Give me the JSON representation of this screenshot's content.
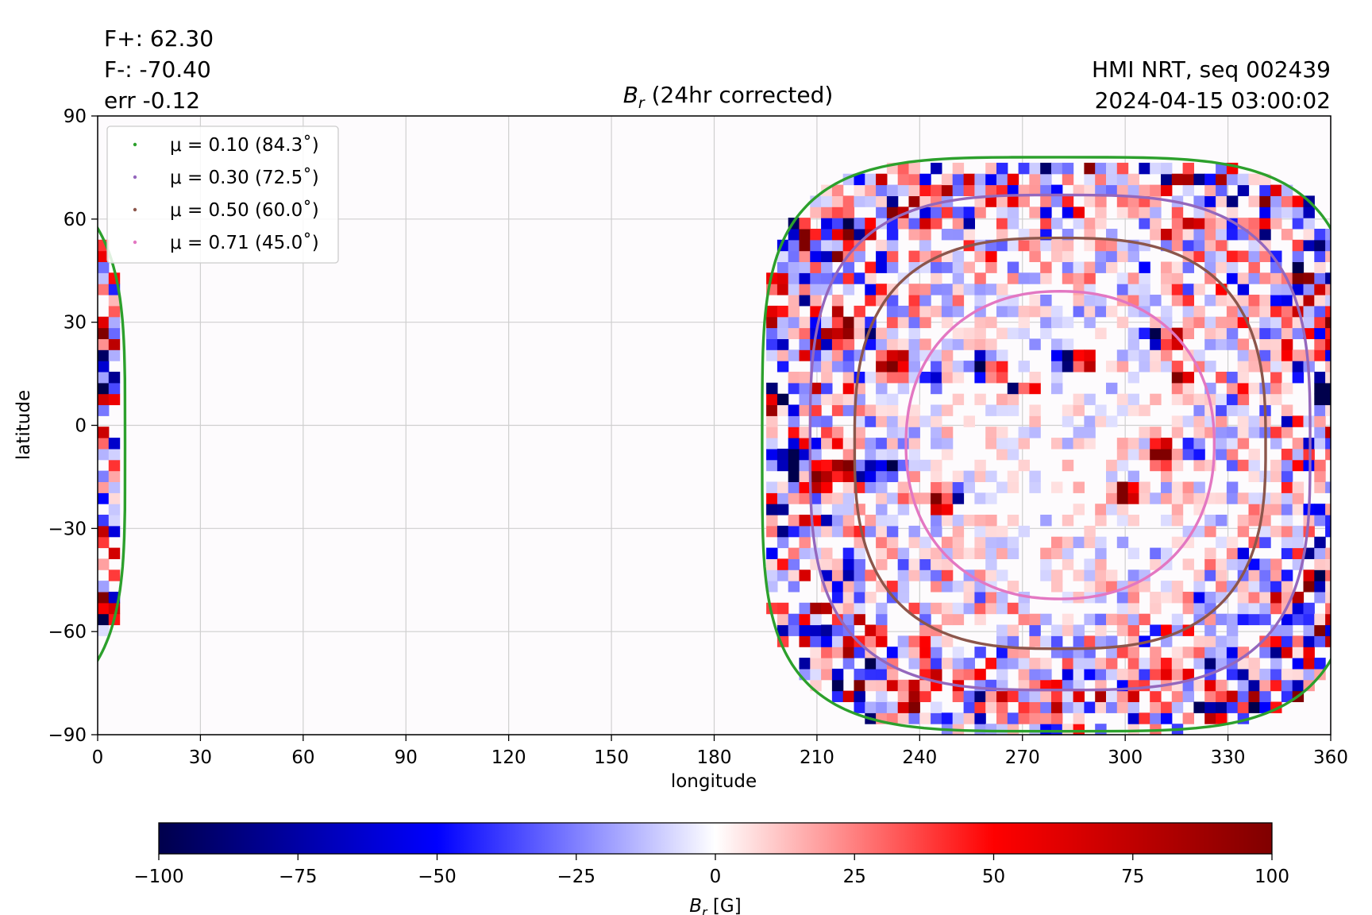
{
  "header": {
    "flux_pos": "F+: 62.30",
    "flux_neg": "F-: -70.40",
    "err": "err -0.12",
    "source": "HMI NRT, seq 002439",
    "timestamp": "2024-04-15 03:00:02"
  },
  "chart_data": {
    "type": "heatmap",
    "title": {
      "symbol": "B",
      "subscript": "r",
      "rest": " (24hr corrected)"
    },
    "xlabel": "longitude",
    "ylabel": "latitude",
    "xlim": [
      0,
      360
    ],
    "ylim": [
      -90,
      90
    ],
    "xticks": [
      0,
      30,
      60,
      90,
      120,
      150,
      180,
      210,
      240,
      270,
      300,
      330,
      360
    ],
    "yticks": [
      -90,
      -60,
      -30,
      0,
      30,
      60,
      90
    ],
    "ytick_labels": [
      "−90",
      "−60",
      "−30",
      "0",
      "30",
      "60",
      "90"
    ],
    "grid": true,
    "legend_position": "top-left",
    "disk_center": {
      "lon": 281,
      "lat": -5.5
    },
    "contours": [
      {
        "label": "μ = 0.10 (84.3˚)",
        "mu": 0.1,
        "angle": 84.3,
        "color": "#2ca02c",
        "lon_half_width": 87,
        "lat_top": 78,
        "lat_bottom": -89,
        "power": 4.0
      },
      {
        "label": "μ = 0.30 (72.5˚)",
        "mu": 0.3,
        "angle": 72.5,
        "color": "#9467bd",
        "lon_half_width": 73,
        "lat_top": 67,
        "lat_bottom": -77,
        "power": 3.2
      },
      {
        "label": "μ = 0.50 (60.0˚)",
        "mu": 0.5,
        "angle": 60.0,
        "color": "#8c564b",
        "lon_half_width": 60,
        "lat_top": 54.5,
        "lat_bottom": -65,
        "power": 2.8
      },
      {
        "label": "μ = 0.71 (45.0˚)",
        "mu": 0.71,
        "angle": 45.0,
        "color": "#e377c2",
        "lon_half_width": 45,
        "lat_top": 39,
        "lat_bottom": -50.5,
        "power": 2.2
      }
    ],
    "active_regions": [
      {
        "lon": 219,
        "lat": 28,
        "sign": 1,
        "size": 7
      },
      {
        "lon": 224,
        "lat": 27,
        "sign": -1,
        "size": 5
      },
      {
        "lon": 232,
        "lat": 18,
        "sign": 1,
        "size": 6
      },
      {
        "lon": 244,
        "lat": 14,
        "sign": -1,
        "size": 4
      },
      {
        "lon": 258,
        "lat": 17,
        "sign": -1,
        "size": 5
      },
      {
        "lon": 262,
        "lat": 16,
        "sign": 1,
        "size": 4
      },
      {
        "lon": 268,
        "lat": 11,
        "sign": -1,
        "size": 3
      },
      {
        "lon": 272,
        "lat": 10,
        "sign": 1,
        "size": 3
      },
      {
        "lon": 283,
        "lat": 19,
        "sign": -1,
        "size": 5
      },
      {
        "lon": 288,
        "lat": 19,
        "sign": 1,
        "size": 4
      },
      {
        "lon": 309,
        "lat": 26,
        "sign": -1,
        "size": 4
      },
      {
        "lon": 314,
        "lat": 25,
        "sign": 1,
        "size": 4
      },
      {
        "lon": 316,
        "lat": 14,
        "sign": 1,
        "size": 4
      },
      {
        "lon": 203,
        "lat": -12,
        "sign": -1,
        "size": 7
      },
      {
        "lon": 210,
        "lat": -15,
        "sign": 1,
        "size": 7
      },
      {
        "lon": 218,
        "lat": -12,
        "sign": 1,
        "size": 5
      },
      {
        "lon": 224,
        "lat": -13,
        "sign": -1,
        "size": 5
      },
      {
        "lon": 232,
        "lat": -12,
        "sign": -1,
        "size": 4
      },
      {
        "lon": 246,
        "lat": -22,
        "sign": 1,
        "size": 5
      },
      {
        "lon": 250,
        "lat": -20,
        "sign": -1,
        "size": 3
      },
      {
        "lon": 300,
        "lat": -20,
        "sign": 1,
        "size": 5
      },
      {
        "lon": 311,
        "lat": -8,
        "sign": 1,
        "size": 5
      },
      {
        "lon": 320,
        "lat": -7,
        "sign": -1,
        "size": 3
      },
      {
        "lon": 358,
        "lat": 8,
        "sign": -1,
        "size": 4
      },
      {
        "lon": 2,
        "lat": 10,
        "sign": -1,
        "size": 4
      },
      {
        "lon": 3,
        "lat": 7,
        "sign": 1,
        "size": 3
      },
      {
        "lon": 2,
        "lat": 20,
        "sign": -1,
        "size": 3
      }
    ],
    "colorbar": {
      "label": {
        "symbol": "B",
        "subscript": "r",
        "rest": " [G]"
      },
      "min": -100,
      "max": 100,
      "ticks": [
        -100,
        -75,
        -50,
        -25,
        0,
        25,
        50,
        75,
        100
      ],
      "tick_labels": [
        "−100",
        "−75",
        "−50",
        "−25",
        "0",
        "25",
        "50",
        "75",
        "100"
      ],
      "colors": [
        "#00004c",
        "#0000ff",
        "#ffffff",
        "#ff0000",
        "#800000"
      ]
    }
  }
}
